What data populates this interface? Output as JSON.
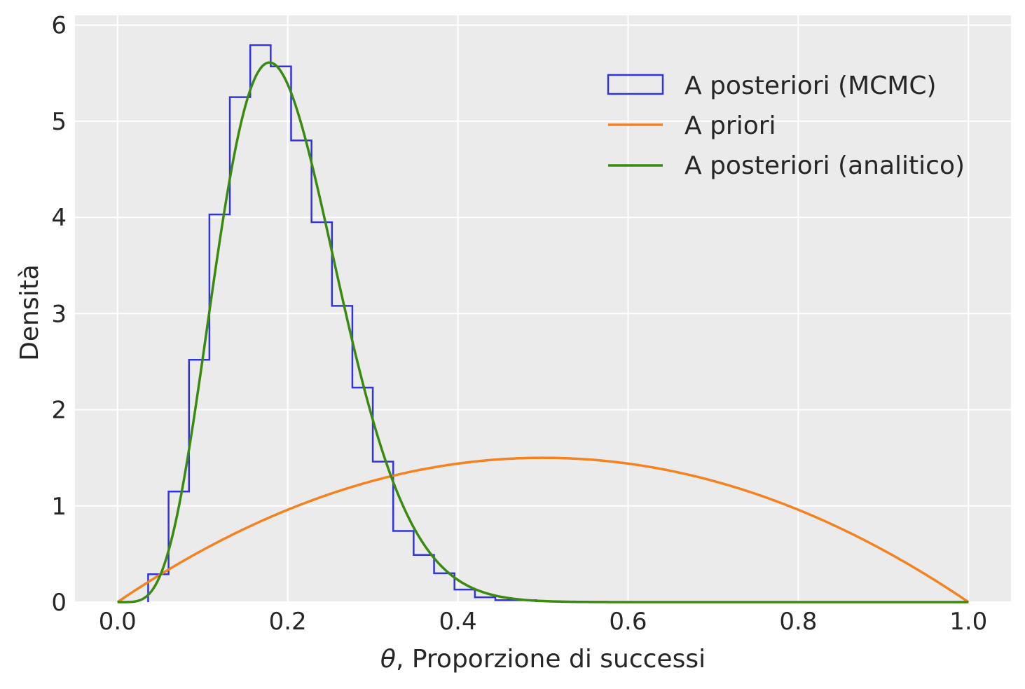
{
  "chart_data": {
    "type": "line",
    "title": "",
    "xlabel_symbol": "θ",
    "xlabel_text": ", Proporzione di successi",
    "ylabel": "Densità",
    "xlim": [
      -0.05,
      1.05
    ],
    "ylim": [
      0,
      6.1
    ],
    "grid": true,
    "background": "#ebebeb",
    "legend_position": "upper right",
    "x_ticks": [
      0.0,
      0.2,
      0.4,
      0.6,
      0.8,
      1.0
    ],
    "x_tick_labels": [
      "0.0",
      "0.2",
      "0.4",
      "0.6",
      "0.8",
      "1.0"
    ],
    "y_ticks": [
      0,
      1,
      2,
      3,
      4,
      5,
      6
    ],
    "y_tick_labels": [
      "0",
      "1",
      "2",
      "3",
      "4",
      "5",
      "6"
    ],
    "series": [
      {
        "name": "A posteriori (MCMC)",
        "kind": "step-histogram",
        "color": "#3333dd",
        "bin_edges": [
          0.036,
          0.06,
          0.084,
          0.108,
          0.132,
          0.156,
          0.18,
          0.204,
          0.228,
          0.252,
          0.276,
          0.3,
          0.324,
          0.348,
          0.372,
          0.396,
          0.42,
          0.444,
          0.468,
          0.492
        ],
        "densities": [
          0.29,
          1.15,
          2.52,
          4.03,
          5.25,
          5.79,
          5.57,
          4.8,
          3.95,
          3.08,
          2.23,
          1.46,
          0.74,
          0.49,
          0.3,
          0.13,
          0.05,
          0.02,
          0.02
        ]
      },
      {
        "name": "A priori",
        "kind": "line",
        "color": "#f58220",
        "distribution": "Beta(2, 2)"
      },
      {
        "name": "A posteriori (analitico)",
        "kind": "line",
        "color": "#3a8a10",
        "distribution": "Beta(6, 24)"
      }
    ]
  }
}
